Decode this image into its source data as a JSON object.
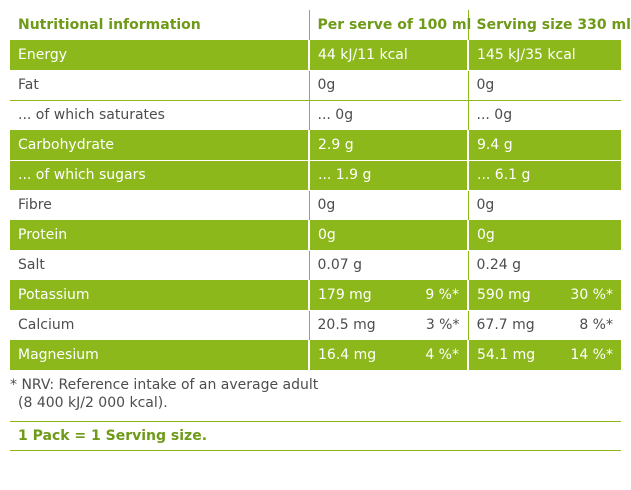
{
  "table": {
    "headers": [
      "Nutritional information",
      "Per serve of 100 ml",
      "Serving size 330 ml"
    ],
    "rows": [
      {
        "name": "Energy",
        "per100": "44 kJ/11 kcal",
        "per100_nrv": "",
        "serving": "145 kJ/35 kcal",
        "serving_nrv": "",
        "shaded": true
      },
      {
        "name": "Fat",
        "per100": "0g",
        "per100_nrv": "",
        "serving": "0g",
        "serving_nrv": "",
        "shaded": false
      },
      {
        "name": "... of which saturates",
        "per100": "... 0g",
        "per100_nrv": "",
        "serving": "... 0g",
        "serving_nrv": "",
        "shaded": false
      },
      {
        "name": "Carbohydrate",
        "per100": "2.9 g",
        "per100_nrv": "",
        "serving": "9.4 g",
        "serving_nrv": "",
        "shaded": true
      },
      {
        "name": "... of which sugars",
        "per100": "... 1.9 g",
        "per100_nrv": "",
        "serving": "... 6.1 g",
        "serving_nrv": "",
        "shaded": true
      },
      {
        "name": "Fibre",
        "per100": "0g",
        "per100_nrv": "",
        "serving": "0g",
        "serving_nrv": "",
        "shaded": false
      },
      {
        "name": "Protein",
        "per100": "0g",
        "per100_nrv": "",
        "serving": "0g",
        "serving_nrv": "",
        "shaded": true
      },
      {
        "name": "Salt",
        "per100": "0.07 g",
        "per100_nrv": "",
        "serving": "0.24 g",
        "serving_nrv": "",
        "shaded": false
      },
      {
        "name": "Potassium",
        "per100": "179 mg",
        "per100_nrv": "9 %*",
        "serving": "590 mg",
        "serving_nrv": "30 %*",
        "shaded": true
      },
      {
        "name": "Calcium",
        "per100": "20.5 mg",
        "per100_nrv": "3 %*",
        "serving": "67.7 mg",
        "serving_nrv": "8 %*",
        "shaded": false
      },
      {
        "name": "Magnesium",
        "per100": "16.4 mg",
        "per100_nrv": "4 %*",
        "serving": "54.1 mg",
        "serving_nrv": "14 %*",
        "shaded": true
      }
    ]
  },
  "footnote": {
    "line1": "* NRV: Reference intake of an average adult",
    "line2": "(8 400 kJ/2 000 kcal)."
  },
  "pack_note": "1 Pack = 1 Serving size.",
  "colors": {
    "accent": "#8cb81b",
    "header_text": "#6e9a17",
    "body_text": "#4d4d4d"
  }
}
